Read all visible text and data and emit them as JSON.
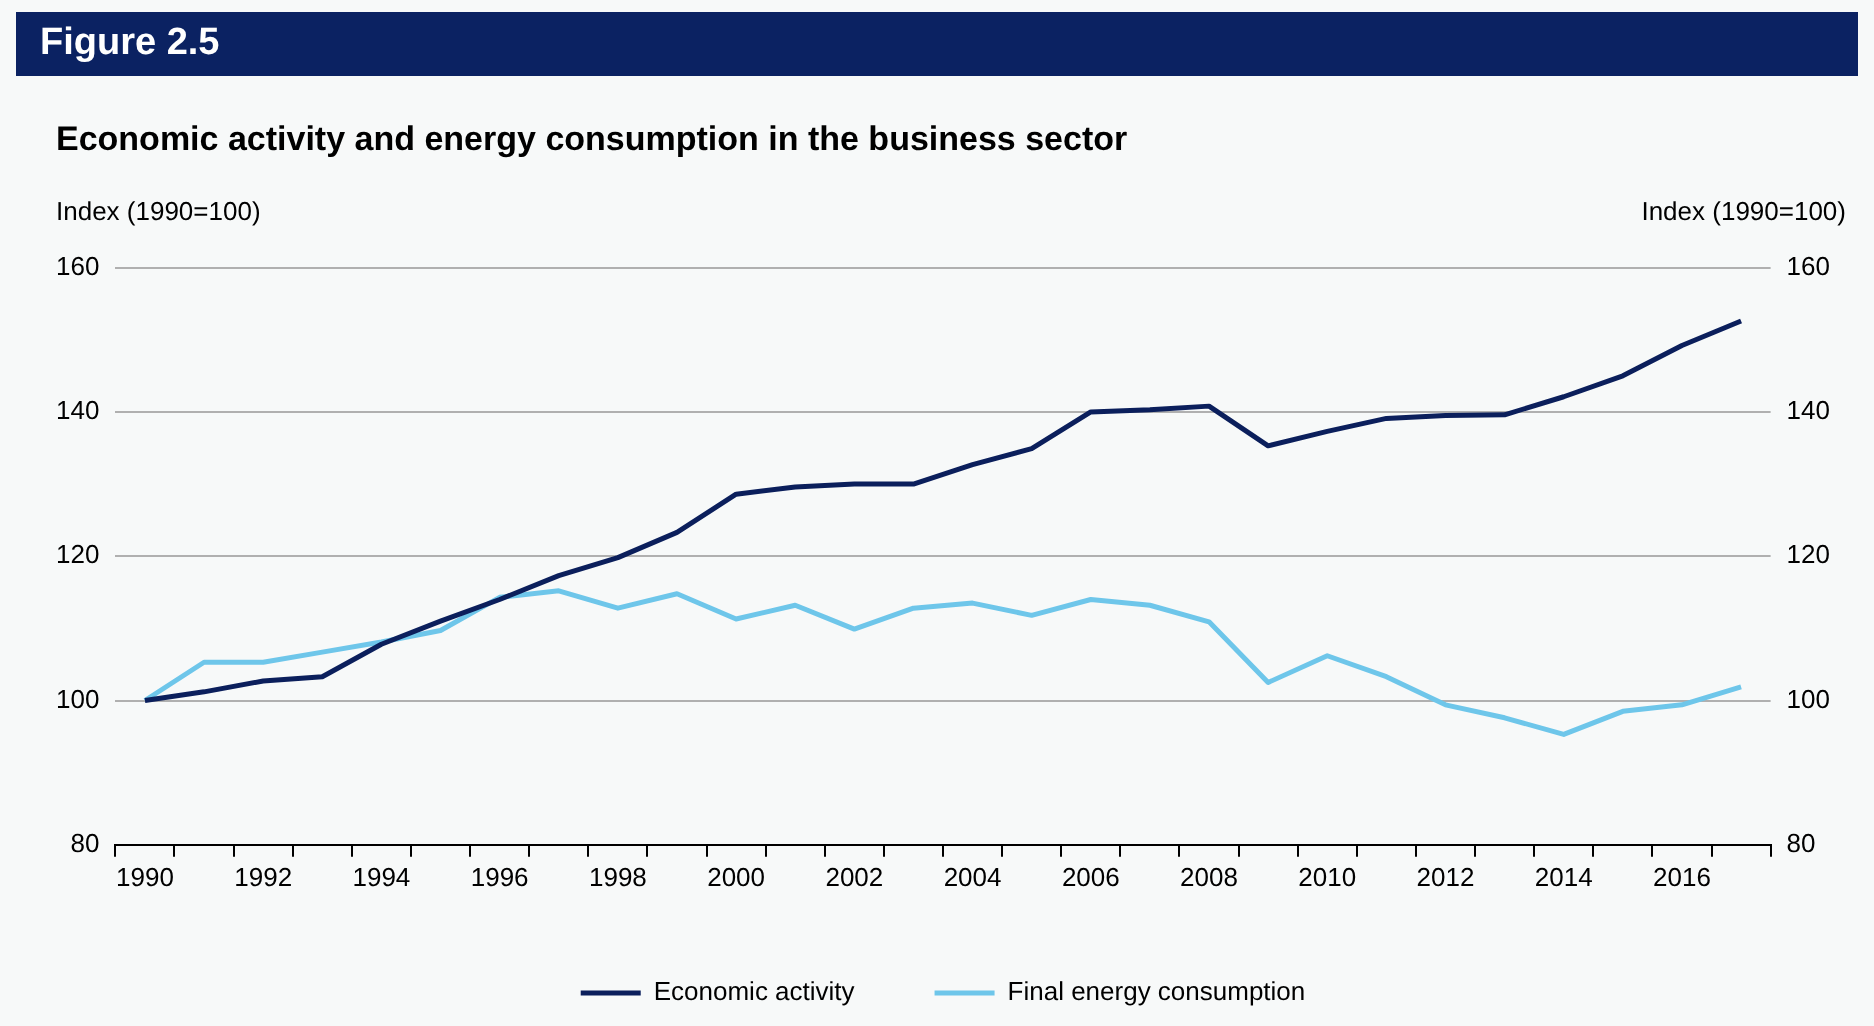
{
  "chart_data": {
    "type": "line",
    "title": "Economic activity and energy consumption in the business sector",
    "annotations": [
      "Figure 2.5"
    ],
    "ylabel": "Index (1990=100)",
    "y2label": "Index (1990=100)",
    "categories": [
      "1990",
      null,
      "1992",
      null,
      "1994",
      null,
      "1996",
      null,
      "1998",
      null,
      "2000",
      null,
      "2002",
      null,
      "2004",
      null,
      "2006",
      null,
      "2008",
      null,
      "2010",
      null,
      "2012",
      null,
      "2014",
      null,
      "2016",
      null
    ],
    "series": [
      {
        "name": "Economic activity",
        "color": "#0b1f5c",
        "values": [
          100,
          101.2,
          102.7,
          103.3,
          107.8,
          111,
          114,
          117.3,
          119.8,
          123.3,
          128.6,
          129.6,
          130,
          130,
          132.7,
          134.9,
          140,
          140.3,
          140.8,
          135.3,
          137.3,
          139.1,
          139.5,
          139.6,
          142.1,
          145,
          149.2,
          152.6
        ]
      },
      {
        "name": "Final energy consumption",
        "color": "#6ec6ea",
        "values": [
          100,
          105.3,
          105.3,
          106.7,
          108.1,
          109.7,
          114.3,
          115.2,
          112.8,
          114.8,
          111.3,
          113.2,
          109.9,
          112.8,
          113.5,
          111.8,
          114,
          113.2,
          110.9,
          102.5,
          106.2,
          103.3,
          99.4,
          97.6,
          95.3,
          98.5,
          99.4,
          101.9
        ]
      }
    ],
    "ylim": [
      80,
      160
    ],
    "yticks": [
      80,
      100,
      120,
      140,
      160
    ],
    "y2lim": [
      80,
      160
    ],
    "y2ticks": [
      80,
      100,
      120,
      140,
      160
    ],
    "grid": "y",
    "legend": "bottom",
    "marker": "none",
    "line_style": "solid"
  }
}
